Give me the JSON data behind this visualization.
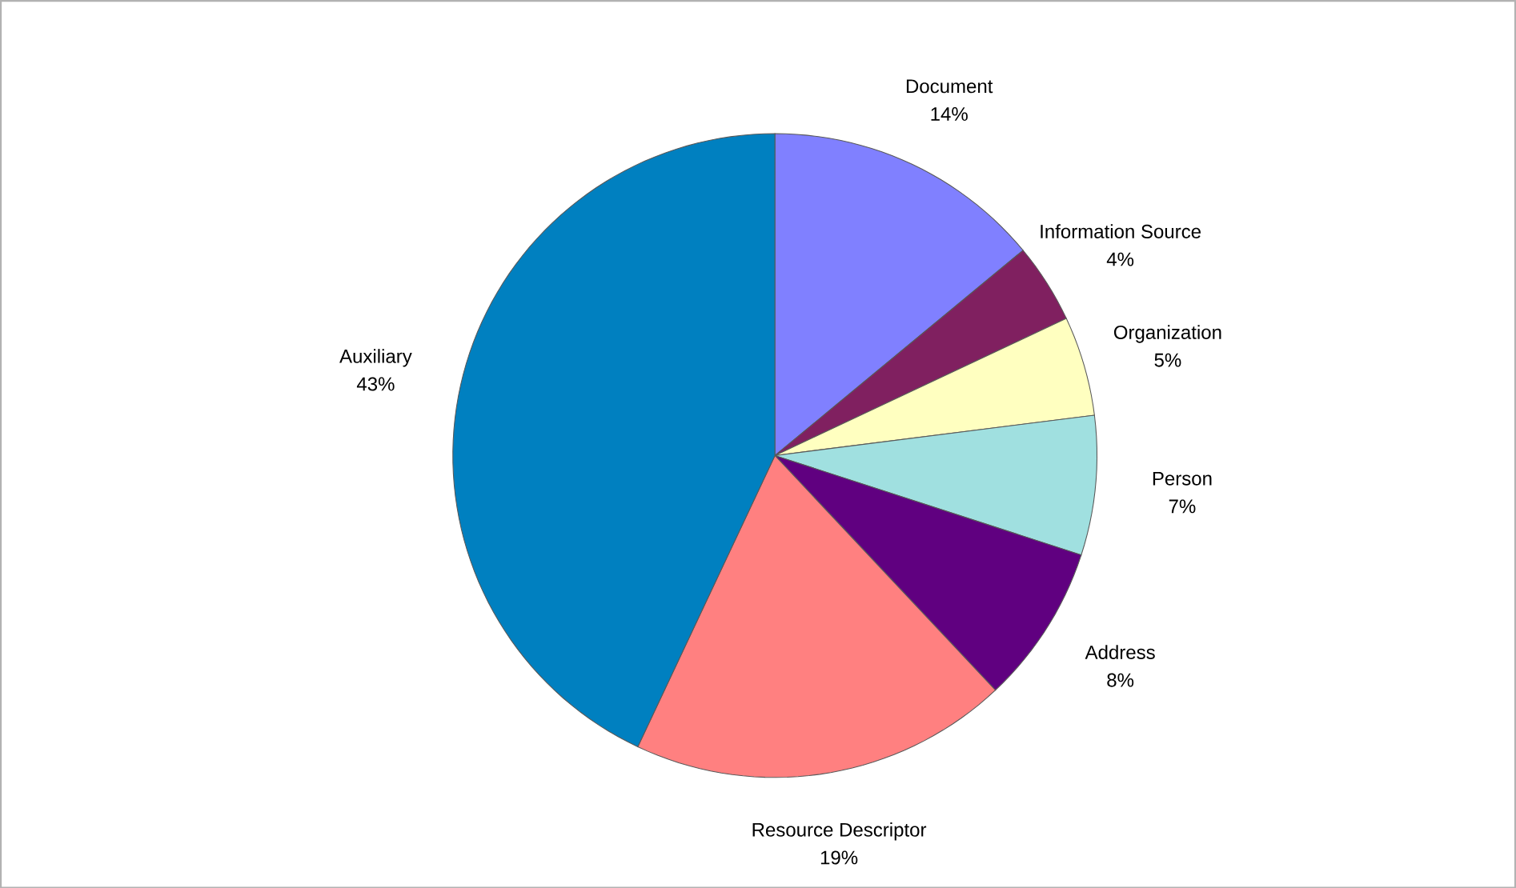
{
  "chart_data": {
    "type": "pie",
    "categories": [
      "Document",
      "Information Source",
      "Organization",
      "Person",
      "Address",
      "Resource Descriptor",
      "Auxiliary"
    ],
    "values": [
      14,
      4,
      5,
      7,
      8,
      19,
      43
    ],
    "value_labels": [
      "14%",
      "4%",
      "5%",
      "7%",
      "8%",
      "19%",
      "43%"
    ],
    "colors": [
      "#8080ff",
      "#802060",
      "#ffffc0",
      "#a0e0e0",
      "#600080",
      "#ff8080",
      "#0080c0"
    ]
  }
}
